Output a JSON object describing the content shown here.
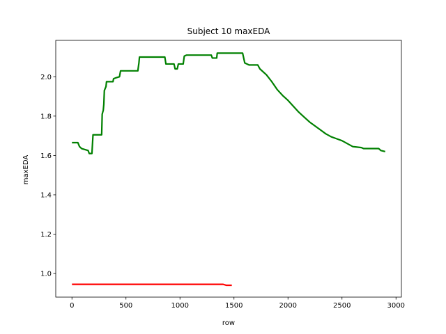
{
  "chart_data": {
    "type": "line",
    "title": "Subject 10 maxEDA",
    "xlabel": "row",
    "ylabel": "maxEDA",
    "xlim": [
      -150,
      3050
    ],
    "ylim": [
      0.88,
      2.185
    ],
    "grid": false,
    "legend": "none",
    "xticks": [
      0,
      500,
      1000,
      1500,
      2000,
      2500,
      3000
    ],
    "xtick_labels": [
      "0",
      "500",
      "1000",
      "1500",
      "2000",
      "2500",
      "3000"
    ],
    "yticks": [
      1.0,
      1.2,
      1.4,
      1.6,
      1.8,
      2.0
    ],
    "ytick_labels": [
      "1.0",
      "1.2",
      "1.4",
      "1.6",
      "1.8",
      "2.0"
    ],
    "series": [
      {
        "color": "#008000",
        "points": [
          [
            0,
            1.665
          ],
          [
            55,
            1.665
          ],
          [
            70,
            1.645
          ],
          [
            90,
            1.635
          ],
          [
            150,
            1.625
          ],
          [
            160,
            1.61
          ],
          [
            185,
            1.61
          ],
          [
            195,
            1.705
          ],
          [
            275,
            1.705
          ],
          [
            280,
            1.81
          ],
          [
            290,
            1.83
          ],
          [
            295,
            1.86
          ],
          [
            300,
            1.93
          ],
          [
            315,
            1.95
          ],
          [
            320,
            1.975
          ],
          [
            380,
            1.975
          ],
          [
            385,
            1.99
          ],
          [
            410,
            1.995
          ],
          [
            440,
            2.0
          ],
          [
            450,
            2.03
          ],
          [
            610,
            2.03
          ],
          [
            620,
            2.07
          ],
          [
            625,
            2.1
          ],
          [
            860,
            2.1
          ],
          [
            870,
            2.065
          ],
          [
            945,
            2.065
          ],
          [
            955,
            2.04
          ],
          [
            975,
            2.04
          ],
          [
            985,
            2.065
          ],
          [
            1030,
            2.065
          ],
          [
            1040,
            2.105
          ],
          [
            1060,
            2.11
          ],
          [
            1290,
            2.11
          ],
          [
            1300,
            2.095
          ],
          [
            1340,
            2.095
          ],
          [
            1345,
            2.12
          ],
          [
            1580,
            2.12
          ],
          [
            1600,
            2.07
          ],
          [
            1640,
            2.06
          ],
          [
            1720,
            2.06
          ],
          [
            1740,
            2.04
          ],
          [
            1800,
            2.01
          ],
          [
            1850,
            1.975
          ],
          [
            1900,
            1.935
          ],
          [
            1950,
            1.905
          ],
          [
            2000,
            1.88
          ],
          [
            2050,
            1.85
          ],
          [
            2100,
            1.82
          ],
          [
            2150,
            1.795
          ],
          [
            2200,
            1.77
          ],
          [
            2250,
            1.75
          ],
          [
            2300,
            1.73
          ],
          [
            2350,
            1.71
          ],
          [
            2400,
            1.695
          ],
          [
            2450,
            1.685
          ],
          [
            2500,
            1.675
          ],
          [
            2550,
            1.66
          ],
          [
            2600,
            1.645
          ],
          [
            2680,
            1.64
          ],
          [
            2700,
            1.635
          ],
          [
            2840,
            1.635
          ],
          [
            2860,
            1.625
          ],
          [
            2900,
            1.62
          ]
        ]
      },
      {
        "color": "#ff0000",
        "points": [
          [
            0,
            0.945
          ],
          [
            1400,
            0.945
          ],
          [
            1430,
            0.94
          ],
          [
            1480,
            0.94
          ]
        ]
      }
    ]
  }
}
